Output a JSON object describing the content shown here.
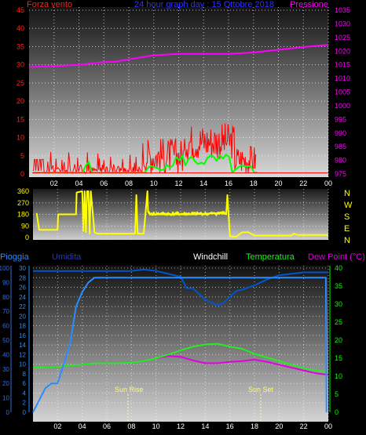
{
  "header": {
    "left_label": "Forza vento",
    "center_label": "24 hour graph day : 15 Ottobre 2018",
    "right_label": "Pressione"
  },
  "colors": {
    "wind": "#ff0000",
    "gust": "#00ff00",
    "pressure": "#ff00ff",
    "direction": "#ffff00",
    "humidity": "#0055cc",
    "rain": "#2a8cff",
    "temperature": "#22ee22",
    "dewpoint": "#e000e0",
    "axis_green": "#00ff00"
  },
  "direction_panel": {
    "compass_labels": [
      "N",
      "W",
      "S",
      "E",
      "N"
    ]
  },
  "bottom_header": {
    "rain_label": "Pioggia",
    "humidity_label": "Umidita",
    "windchill_label": "Windchill",
    "temperature_label": "Temperatura",
    "dewpoint_label": "Dew Point (°C)"
  },
  "annotations": {
    "sunrise": "Sun Rise",
    "sunset": "Sun Set"
  },
  "chart_data": [
    {
      "type": "line",
      "title": "24 hour graph day : 15 Ottobre 2018",
      "xlabel": "",
      "x_ticks": [
        "02",
        "04",
        "06",
        "08",
        "10",
        "12",
        "14",
        "16",
        "18",
        "20",
        "22",
        "00"
      ],
      "xlim": [
        0,
        24
      ],
      "left_axis": {
        "label": "Forza vento",
        "ticks": [
          0,
          5,
          10,
          15,
          20,
          25,
          30,
          35,
          40,
          45
        ],
        "ylim": [
          0,
          45
        ]
      },
      "right_axis": {
        "label": "Pressione",
        "ticks": [
          975,
          980,
          985,
          990,
          995,
          1000,
          1005,
          1010,
          1015,
          1020,
          1025,
          1030,
          1035
        ],
        "ylim": [
          975,
          1035
        ]
      },
      "series": [
        {
          "name": "Pressione",
          "axis": "right",
          "x": [
            0,
            2,
            4,
            6,
            7,
            8,
            10,
            12,
            14,
            16,
            18,
            20,
            22,
            24
          ],
          "values": [
            1014.2,
            1014.5,
            1015,
            1016,
            1016.2,
            1017,
            1018.5,
            1019,
            1019,
            1019,
            1019.5,
            1020.5,
            1021.5,
            1022.3
          ]
        }
      ]
    },
    {
      "type": "line",
      "title": "",
      "y_ticks": [
        0,
        90,
        180,
        270,
        360
      ],
      "ylim": [
        0,
        360
      ],
      "right_labels": [
        "N",
        "W",
        "S",
        "E",
        "N"
      ],
      "series": [
        {
          "name": "",
          "x": [
            0.3,
            0.5,
            1,
            2,
            2.05,
            3,
            3.2,
            3.5,
            3.55,
            4,
            4.1,
            4.2,
            4.3,
            4.4,
            4.5,
            4.6,
            4.7,
            5,
            5.2,
            6,
            7,
            8,
            8.3,
            8.4,
            8.5,
            9,
            9.3,
            9.35,
            9.5,
            10,
            11,
            12,
            13,
            14,
            15,
            15.5,
            15.7,
            15.8,
            16,
            16.5,
            17,
            17.5,
            18,
            20,
            21,
            21.2,
            21.5,
            22,
            24
          ],
          "values": [
            190,
            60,
            60,
            60,
            180,
            180,
            180,
            180,
            350,
            360,
            50,
            360,
            40,
            360,
            360,
            30,
            360,
            40,
            30,
            30,
            30,
            30,
            30,
            330,
            30,
            30,
            360,
            200,
            180,
            180,
            180,
            180,
            180,
            185,
            190,
            200,
            180,
            330,
            10,
            5,
            40,
            40,
            15,
            15,
            15,
            30,
            20,
            20,
            20
          ]
        }
      ]
    },
    {
      "type": "line",
      "title": "",
      "x_ticks": [
        "02",
        "04",
        "06",
        "08",
        "10",
        "12",
        "14",
        "16",
        "18",
        "20",
        "22",
        "00"
      ],
      "xlim": [
        0,
        24
      ],
      "rain_axis": {
        "label": "Pioggia",
        "ticks": [
          0,
          2,
          4,
          6,
          8,
          10,
          12,
          14,
          16,
          18,
          20,
          22,
          24,
          26,
          28,
          30
        ],
        "ylim": [
          0,
          30
        ]
      },
      "humidity_axis": {
        "label": "Umidita",
        "ticks": [
          0,
          10,
          20,
          30,
          40,
          50,
          60,
          70,
          80,
          90,
          100
        ],
        "ylim": [
          0,
          100
        ]
      },
      "temp_axis": {
        "label": "Dew Point (°C)",
        "ticks": [
          0,
          5,
          10,
          15,
          20,
          25,
          30,
          35,
          40
        ],
        "ylim": [
          0,
          40
        ]
      },
      "annotations": [
        {
          "text": "Sun Rise",
          "x": 7.6
        },
        {
          "text": "Sun Set",
          "x": 18.4
        }
      ],
      "series": [
        {
          "name": "Pioggia",
          "axis": "rain",
          "x": [
            0,
            1,
            1.5,
            2,
            2.5,
            3,
            3.5,
            4,
            4.5,
            5,
            5.5,
            6,
            7,
            8,
            9,
            10,
            11,
            12,
            13,
            14,
            15,
            16,
            17,
            18,
            19,
            20,
            21,
            22,
            23,
            23.8,
            23.85
          ],
          "values": [
            0,
            5,
            6,
            6,
            10,
            14,
            22,
            25,
            27,
            28,
            28,
            28,
            28,
            28,
            28,
            28,
            28,
            28,
            28,
            28,
            28,
            28,
            28,
            28,
            28,
            28,
            28,
            28,
            28,
            28,
            0
          ]
        },
        {
          "name": "Umidita",
          "axis": "humidity",
          "x": [
            0,
            2,
            4,
            6,
            8,
            9,
            10,
            11,
            12,
            12.5,
            13,
            13.5,
            14,
            14.5,
            15,
            15.5,
            16,
            16.5,
            17,
            18,
            19,
            20,
            21,
            22,
            23,
            24
          ],
          "values": [
            98,
            98,
            98,
            98,
            98,
            99,
            98,
            96,
            94,
            86,
            86,
            82,
            78,
            76,
            74,
            76,
            80,
            84,
            85,
            88,
            92,
            95,
            96,
            97,
            97,
            97
          ]
        },
        {
          "name": "Temperatura",
          "axis": "temp",
          "x": [
            0,
            1,
            2,
            3,
            4,
            5,
            6,
            7,
            8,
            9,
            10,
            11,
            12,
            13,
            14,
            15,
            16,
            17,
            18,
            19,
            20,
            21,
            22,
            23,
            24
          ],
          "values": [
            12.4,
            12.4,
            12.6,
            13,
            13.2,
            13.6,
            13.6,
            13.6,
            13.8,
            14.2,
            15,
            16,
            17.2,
            18.2,
            18.8,
            19,
            18.2,
            17.6,
            16.2,
            15.2,
            14.2,
            13.2,
            12.2,
            11.6,
            11.2
          ]
        },
        {
          "name": "Dew Point (°C)",
          "axis": "temp",
          "x": [
            0,
            1,
            2,
            3,
            4,
            5,
            6,
            7,
            8,
            9,
            10,
            11,
            12,
            13,
            14,
            15,
            16,
            17,
            18,
            19,
            20,
            21,
            22,
            23,
            24
          ],
          "values": [
            12.4,
            12.4,
            12.6,
            13,
            13.2,
            13.6,
            13.6,
            13.6,
            13.8,
            14.2,
            15,
            15.6,
            15.4,
            14.4,
            13.6,
            13.6,
            14,
            14.2,
            14.6,
            14,
            13.2,
            12.4,
            11.6,
            10.8,
            10.4
          ]
        }
      ]
    }
  ]
}
